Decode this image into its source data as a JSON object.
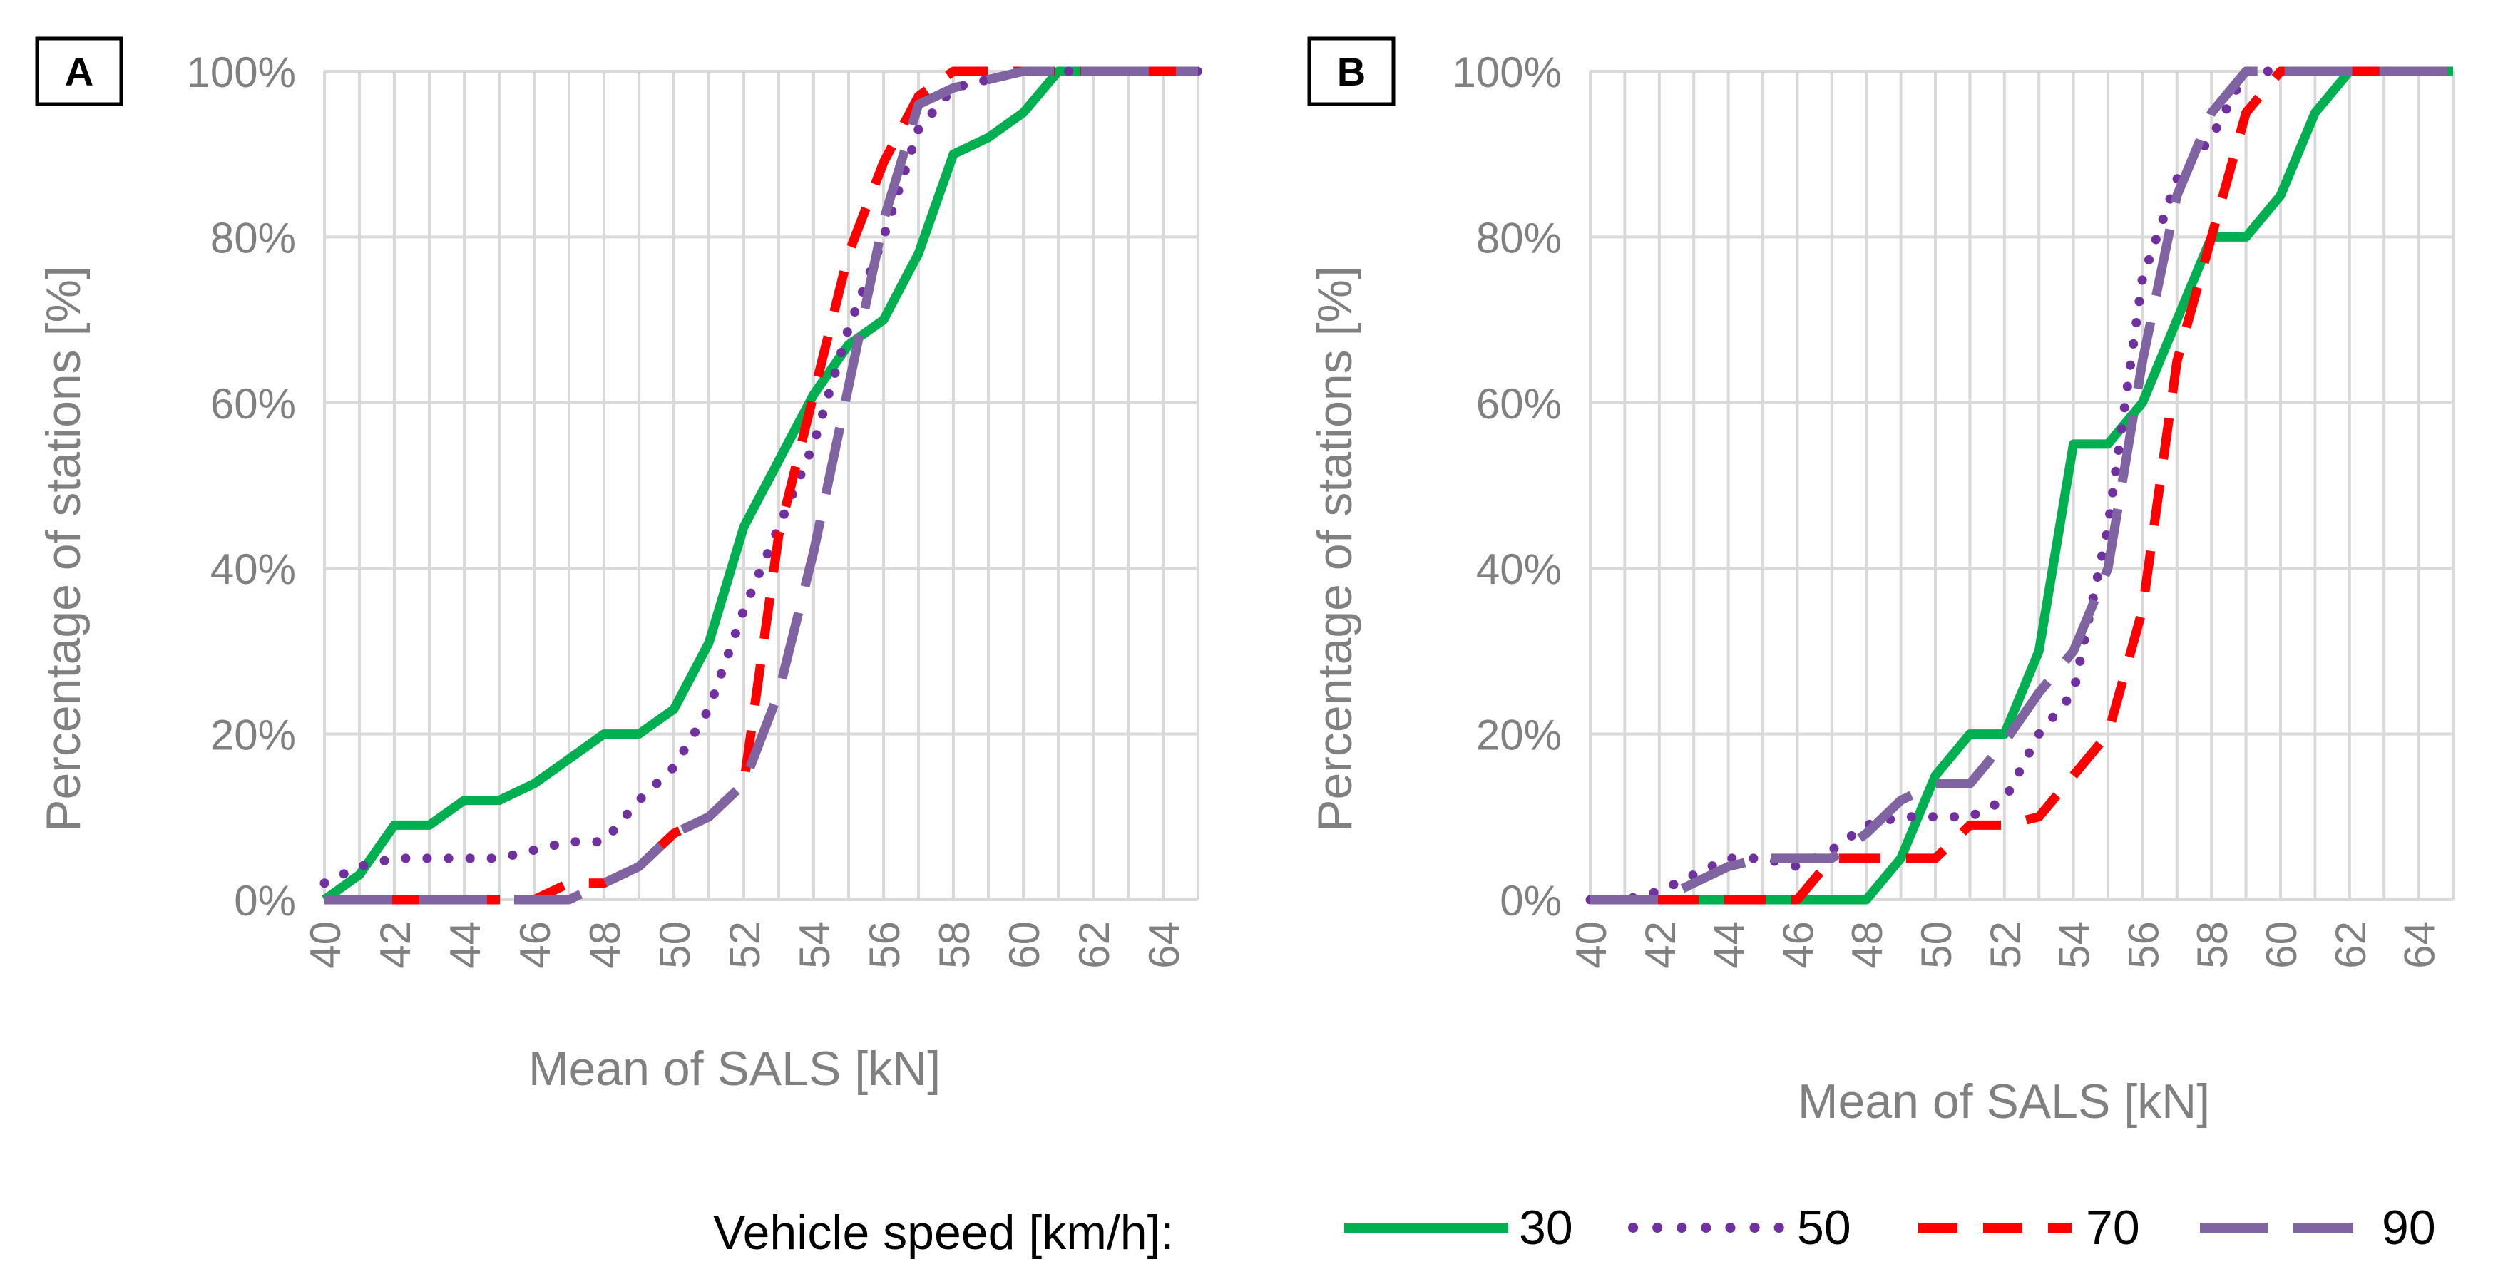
{
  "legend": {
    "title": "Vehicle speed [km/h]:",
    "entries": [
      "30",
      "50",
      "70",
      "90"
    ]
  },
  "series_style": {
    "30": {
      "color": "#00b050",
      "dash": "none"
    },
    "50": {
      "color": "#7030a0",
      "dash": "dot"
    },
    "70": {
      "color": "#ff0000",
      "dash": "dash"
    },
    "90": {
      "color": "#8064a2",
      "dash": "longdash"
    }
  },
  "chart_data": [
    {
      "type": "line",
      "panel": "A",
      "xlabel": "Mean of SALS [kN]",
      "ylabel": "Percentage of stations [%]",
      "xlim": [
        40,
        65
      ],
      "ylim": [
        0,
        100
      ],
      "xticks": [
        "40",
        "42",
        "44",
        "46",
        "48",
        "50",
        "52",
        "54",
        "56",
        "58",
        "60",
        "62",
        "64"
      ],
      "yticks": [
        "0%",
        "20%",
        "40%",
        "60%",
        "80%",
        "100%"
      ],
      "x": [
        40,
        41,
        42,
        43,
        44,
        45,
        46,
        47,
        48,
        49,
        50,
        51,
        52,
        53,
        54,
        55,
        56,
        57,
        58,
        59,
        60,
        61,
        62,
        63,
        64,
        65
      ],
      "series": [
        {
          "name": "30",
          "values": [
            0,
            3,
            9,
            9,
            12,
            12,
            14,
            17,
            20,
            20,
            23,
            31,
            45,
            53,
            61,
            67,
            70,
            78,
            90,
            92,
            95,
            100,
            100,
            100,
            100,
            100
          ]
        },
        {
          "name": "50",
          "values": [
            2,
            4,
            5,
            5,
            5,
            5,
            6,
            7,
            7,
            12,
            16,
            23,
            35,
            45,
            55,
            69,
            80,
            93,
            98,
            99,
            100,
            100,
            100,
            100,
            100,
            100
          ]
        },
        {
          "name": "70",
          "values": [
            0,
            0,
            0,
            0,
            0,
            0,
            0,
            2,
            2,
            4,
            8,
            10,
            14,
            44,
            61,
            78,
            89,
            97,
            100,
            100,
            100,
            100,
            100,
            100,
            100,
            100
          ]
        },
        {
          "name": "90",
          "values": [
            0,
            0,
            0,
            0,
            0,
            0,
            0,
            0,
            2,
            4,
            8,
            10,
            14,
            25,
            42,
            62,
            82,
            96,
            98,
            99,
            100,
            100,
            100,
            100,
            100,
            100
          ]
        }
      ]
    },
    {
      "type": "line",
      "panel": "B",
      "xlabel": "Mean of SALS [kN]",
      "ylabel": "Percentage of stations [%]",
      "xlim": [
        40,
        65
      ],
      "ylim": [
        0,
        100
      ],
      "xticks": [
        "40",
        "42",
        "44",
        "46",
        "48",
        "50",
        "52",
        "54",
        "56",
        "58",
        "60",
        "62",
        "64"
      ],
      "yticks": [
        "0%",
        "20%",
        "40%",
        "60%",
        "80%",
        "100%"
      ],
      "x": [
        40,
        41,
        42,
        43,
        44,
        45,
        46,
        47,
        48,
        49,
        50,
        51,
        52,
        53,
        54,
        55,
        56,
        57,
        58,
        59,
        60,
        61,
        62,
        63,
        64,
        65
      ],
      "series": [
        {
          "name": "30",
          "values": [
            0,
            0,
            0,
            0,
            0,
            0,
            0,
            0,
            0,
            5,
            15,
            20,
            20,
            30,
            55,
            55,
            60,
            70,
            80,
            80,
            85,
            95,
            100,
            100,
            100,
            100
          ]
        },
        {
          "name": "50",
          "values": [
            0,
            0,
            1,
            3,
            5,
            5,
            4,
            6,
            9,
            10,
            10,
            10,
            12,
            20,
            25,
            45,
            75,
            87,
            92,
            100,
            100,
            100,
            100,
            100,
            100,
            100
          ]
        },
        {
          "name": "70",
          "values": [
            0,
            0,
            0,
            0,
            0,
            0,
            0,
            5,
            5,
            5,
            5,
            9,
            9,
            10,
            15,
            20,
            35,
            65,
            80,
            95,
            100,
            100,
            100,
            100,
            100,
            100
          ]
        },
        {
          "name": "90",
          "values": [
            0,
            0,
            0,
            2,
            4,
            5,
            5,
            5,
            8,
            12,
            14,
            14,
            19,
            25,
            30,
            40,
            65,
            85,
            95,
            100,
            100,
            100,
            100,
            100,
            100,
            100
          ]
        }
      ]
    }
  ]
}
